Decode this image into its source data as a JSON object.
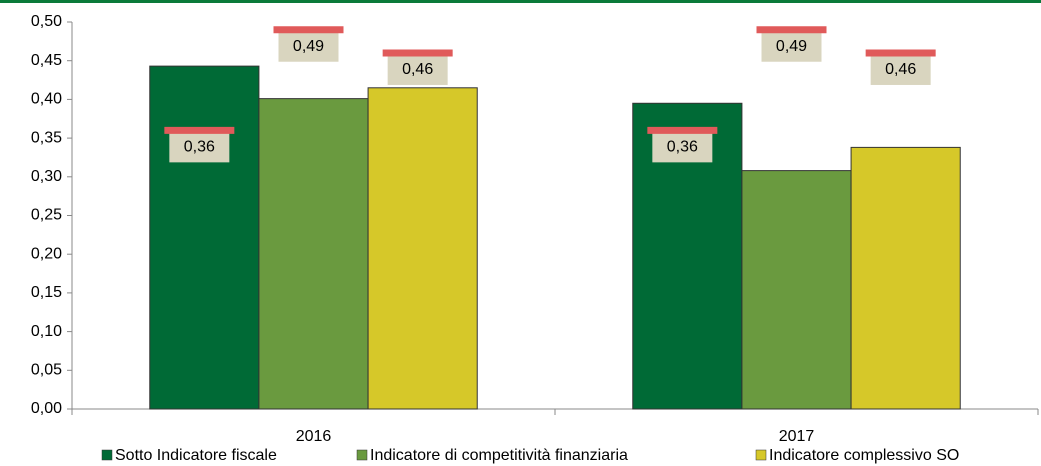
{
  "chart_data": {
    "type": "bar",
    "categories": [
      "2016",
      "2017"
    ],
    "series": [
      {
        "name": "Sotto Indicatore fiscale",
        "color": "#006a36",
        "values": [
          0.443,
          0.395
        ],
        "threshold": [
          0.36,
          0.36
        ],
        "threshold_labels": [
          "0,36",
          "0,36"
        ]
      },
      {
        "name": "Indicatore di competitività finanziaria",
        "color": "#6a9a3f",
        "values": [
          0.401,
          0.308
        ],
        "threshold": [
          0.49,
          0.49
        ],
        "threshold_labels": [
          "0,49",
          "0,49"
        ]
      },
      {
        "name": "Indicatore complessivo SO",
        "color": "#d6c829",
        "values": [
          0.415,
          0.338
        ],
        "threshold": [
          0.46,
          0.46
        ],
        "threshold_labels": [
          "0,46",
          "0,46"
        ]
      }
    ],
    "threshold_color": "#e05a5a",
    "ylim": [
      0,
      0.5
    ],
    "yticks": [
      {
        "value": 0,
        "label": "0,00"
      },
      {
        "value": 0.05,
        "label": "0,05"
      },
      {
        "value": 0.1,
        "label": "0,10"
      },
      {
        "value": 0.15,
        "label": "0,15"
      },
      {
        "value": 0.2,
        "label": "0,20"
      },
      {
        "value": 0.25,
        "label": "0,25"
      },
      {
        "value": 0.3,
        "label": "0,30"
      },
      {
        "value": 0.35,
        "label": "0,35"
      },
      {
        "value": 0.4,
        "label": "0,40"
      },
      {
        "value": 0.45,
        "label": "0,45"
      },
      {
        "value": 0.5,
        "label": "0,50"
      }
    ],
    "grid": false
  }
}
